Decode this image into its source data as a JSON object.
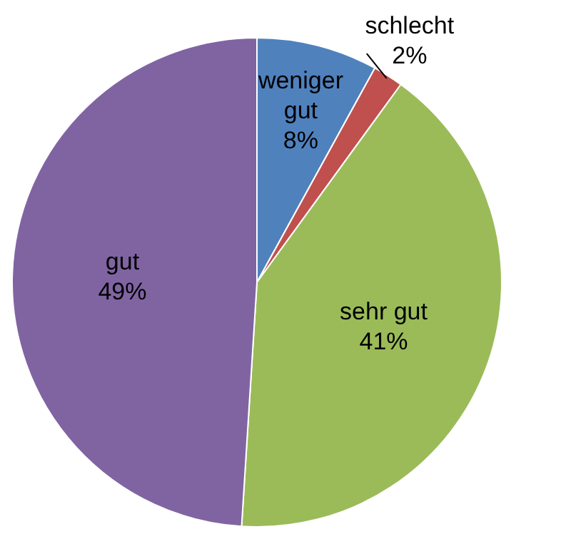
{
  "chart_data": {
    "type": "pie",
    "categories": [
      "weniger gut",
      "schlecht",
      "sehr gut",
      "gut"
    ],
    "values": [
      8,
      2,
      41,
      49
    ],
    "colors": [
      "#4f81bd",
      "#c0504d",
      "#9bbb59",
      "#8064a2"
    ],
    "value_labels": [
      "8%",
      "2%",
      "41%",
      "49%"
    ]
  }
}
